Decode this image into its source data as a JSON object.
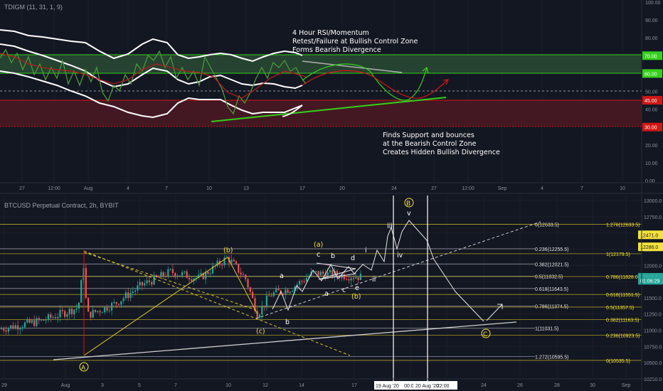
{
  "colors": {
    "background": "#131722",
    "grid": "#1f2430",
    "white": "#e6e6e6",
    "yellow": "#f5e23a",
    "green": "#35d01c",
    "red": "#d11616",
    "bull_zone": "#2f5a3a",
    "bear_zone": "#5c1a24",
    "candle_up": "#26a69a",
    "candle_down": "#ef5350"
  },
  "rsi_panel": {
    "title": "TDIGM (11, 31, 1, 9)",
    "y_ticks": [
      "100.00",
      "90.00",
      "80.00",
      "70.00",
      "60.00",
      "50.00",
      "45.00",
      "40.00",
      "30.00",
      "20.00",
      "10.00",
      "0.00"
    ],
    "badges": [
      {
        "value": "70.00",
        "color": "#35d01c"
      },
      {
        "value": "60.00",
        "color": "#35d01c"
      },
      {
        "value": "45.00",
        "color": "#d11616"
      },
      {
        "value": "30.00",
        "color": "#d11616"
      }
    ],
    "x_ticks": [
      "27",
      "12:00",
      "Aug",
      "4",
      "7",
      "10",
      "13",
      "17",
      "20",
      "24",
      "27",
      "12:00",
      "Sep",
      "4",
      "7",
      "10"
    ],
    "note_top": [
      "4 Hour RSI/Momentum",
      "Retest/Failure at Bullish Control Zone",
      "Forms Bearish Divergence"
    ],
    "note_bottom": [
      "Finds Support and bounces",
      "at the Bearish Control Zone",
      "Creates Hidden Bullish Divergence"
    ],
    "zones": [
      {
        "name": "bullish-control-zone",
        "from": 60,
        "to": 70
      },
      {
        "name": "bearish-control-zone",
        "from": 30,
        "to": 45
      }
    ]
  },
  "price_panel": {
    "title": "BTCUSD Perpetual Contract, 2h, BYBIT",
    "y_ticks": [
      "13000.0",
      "12750.0",
      "12500.0",
      "12250.0",
      "12000.0",
      "11750.0",
      "11500.0",
      "11250.0",
      "11000.0",
      "10750.0",
      "10500.0",
      "10250.0"
    ],
    "price_badges": [
      {
        "value": "12471.0",
        "bg": "#f5e23a",
        "fg": "#131722"
      },
      {
        "value": "12286.0",
        "bg": "#f5e23a",
        "fg": "#131722"
      },
      {
        "value": "11816.0",
        "bg": "#26a69a",
        "fg": "#ffffff"
      },
      {
        "value": "01:06:29",
        "bg": "#26a69a",
        "fg": "#ffffff"
      }
    ],
    "x_ticks": [
      "29",
      "Aug",
      "3",
      "5",
      "7",
      "10",
      "12",
      "14",
      "17",
      "20",
      "22",
      "24",
      "26",
      "28",
      "30",
      "Sep"
    ],
    "time_labels": [
      "19 Aug '20",
      "00:0",
      "20 Aug '20",
      "22:00"
    ],
    "fib_white": [
      {
        "label": "0(12633.5)",
        "price": 12633.5
      },
      {
        "label": "0.236(12255.5)",
        "price": 12255.5
      },
      {
        "label": "0.382(12021.5)",
        "price": 12021.5
      },
      {
        "label": "0.5(11832.5)",
        "price": 11832.5
      },
      {
        "label": "0.618(11643.5)",
        "price": 11643.5
      },
      {
        "label": "0.786(11374.5)",
        "price": 11374.5
      },
      {
        "label": "1(11031.5)",
        "price": 11031.5
      },
      {
        "label": "1.272(10595.5)",
        "price": 10595.5
      }
    ],
    "fib_yellow": [
      {
        "label": "1.276(12633.5)",
        "price": 12633.5
      },
      {
        "label": "1(12179.5)",
        "price": 12179.5
      },
      {
        "label": "0.786(11828.0)",
        "price": 11828.0
      },
      {
        "label": "0.618(11551.5)",
        "price": 11551.5
      },
      {
        "label": "0.5(11357.5)",
        "price": 11357.5
      },
      {
        "label": "0.382(11163.5)",
        "price": 11163.5
      },
      {
        "label": "0.236(10923.5)",
        "price": 10923.5
      },
      {
        "label": "0(10535.5)",
        "price": 10535.5
      }
    ],
    "wave_labels": {
      "A": "A",
      "B": "B",
      "C": "C",
      "b_paren": "(b)",
      "c_paren": "(c)",
      "a_paren": "(a)",
      "b_paren2": "(b)",
      "a": "a",
      "b": "b",
      "c": "c",
      "d": "d",
      "e": "e",
      "i": "i",
      "ii": "ii",
      "iii": "iii",
      "iv": "iv",
      "v": "v"
    }
  },
  "chart_data": [
    {
      "type": "line",
      "title": "TDIGM (11, 31, 1, 9)",
      "ylim": [
        0,
        100
      ],
      "levels": [
        70,
        60,
        50,
        45,
        30
      ],
      "annotations": [
        "4 Hour RSI/Momentum",
        "Retest/Failure at Bullish Control Zone",
        "Forms Bearish Divergence",
        "Finds Support and bounces",
        "at the Bearish Control Zone",
        "Creates Hidden Bullish Divergence"
      ]
    },
    {
      "type": "line",
      "title": "BTCUSD Perpetual Contract, 2h, BYBIT",
      "ylim": [
        10250,
        13000
      ],
      "last_price": 11816.0,
      "wave_points": {
        "A": 10540,
        "(b)": 12100,
        "(c)": 11150,
        "iii": 12500,
        "iv": 12160,
        "v": 12620,
        "C": 11000
      }
    }
  ]
}
